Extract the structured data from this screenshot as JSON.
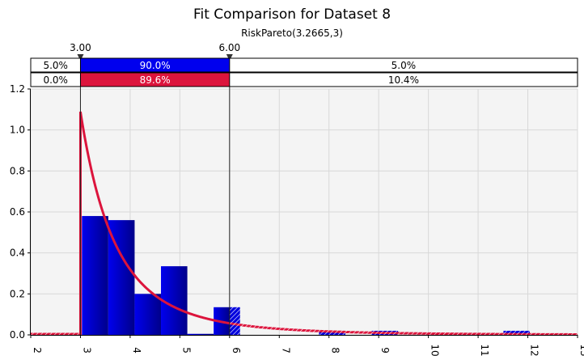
{
  "chart_data": {
    "type": "bar",
    "title": "Fit Comparison for Dataset 8",
    "subtitle": "RiskPareto(3.2665,3)",
    "xlim": [
      2,
      13
    ],
    "ylim": [
      0,
      1.2
    ],
    "x_ticks": [
      "2",
      "3",
      "4",
      "5",
      "6",
      "7",
      "8",
      "9",
      "10",
      "11",
      "12",
      "13"
    ],
    "y_ticks": [
      "0.0",
      "0.2",
      "0.4",
      "0.6",
      "0.8",
      "1.0",
      "1.2"
    ],
    "grid": true,
    "markers": {
      "left": "3.00",
      "right": "6.00",
      "left_value": 3.0,
      "right_value": 6.0
    },
    "bands": [
      {
        "color": "#0000ee",
        "left": "5.0%",
        "middle": "90.0%",
        "right": "5.0%"
      },
      {
        "color": "#dc143c",
        "left": "0.0%",
        "middle": "89.6%",
        "right": "10.4%"
      }
    ],
    "histogram": {
      "color": "#0000dd",
      "bin_width": 0.53,
      "bins": [
        {
          "x0": 3.03,
          "value": 0.58
        },
        {
          "x0": 3.56,
          "value": 0.56
        },
        {
          "x0": 4.09,
          "value": 0.2
        },
        {
          "x0": 4.62,
          "value": 0.335
        },
        {
          "x0": 5.15,
          "value": 0.005
        },
        {
          "x0": 5.68,
          "value": 0.135
        },
        {
          "x0": 7.8,
          "value": 0.02
        },
        {
          "x0": 8.86,
          "value": 0.02
        },
        {
          "x0": 11.51,
          "value": 0.02
        }
      ]
    },
    "fit": {
      "color": "#dc143c",
      "distribution": "Pareto",
      "theta": 3.2665,
      "a": 3
    }
  }
}
